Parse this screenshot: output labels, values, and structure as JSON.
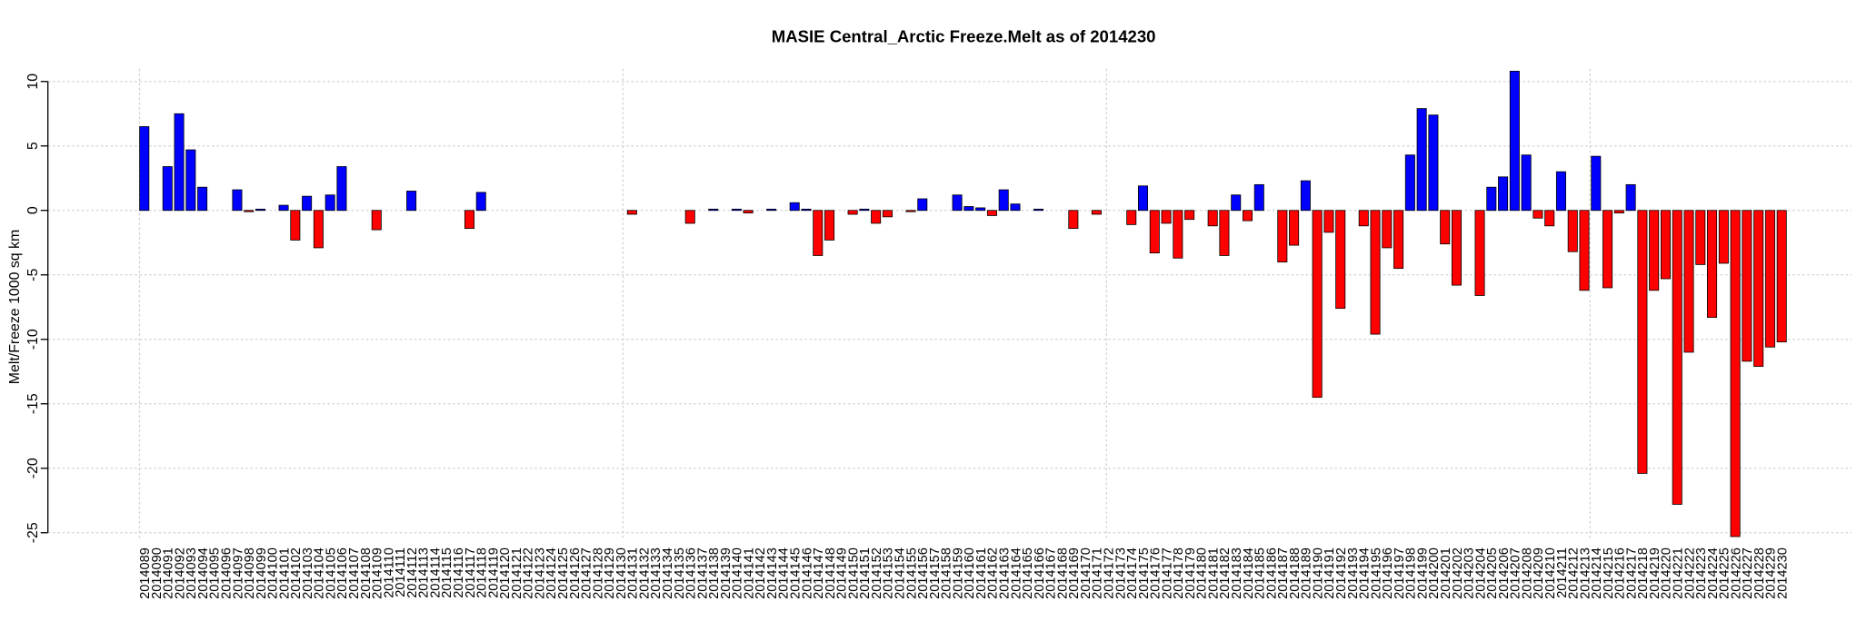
{
  "chart_data": {
    "type": "bar",
    "title": "MASIE Central_Arctic Freeze.Melt as of 2014230",
    "y_label": "Melt/Freeze 1000 sq km",
    "categories": [
      "2014089",
      "2014090",
      "2014091",
      "2014092",
      "2014093",
      "2014094",
      "2014095",
      "2014096",
      "2014097",
      "2014098",
      "2014099",
      "2014100",
      "2014101",
      "2014102",
      "2014103",
      "2014104",
      "2014105",
      "2014106",
      "2014107",
      "2014108",
      "2014109",
      "2014110",
      "2014111",
      "2014112",
      "2014113",
      "2014114",
      "2014115",
      "2014116",
      "2014117",
      "2014118",
      "2014119",
      "2014120",
      "2014121",
      "2014122",
      "2014123",
      "2014124",
      "2014125",
      "2014126",
      "2014127",
      "2014128",
      "2014129",
      "2014130",
      "2014131",
      "2014132",
      "2014133",
      "2014134",
      "2014135",
      "2014136",
      "2014137",
      "2014138",
      "2014139",
      "2014140",
      "2014141",
      "2014142",
      "2014143",
      "2014144",
      "2014145",
      "2014146",
      "2014147",
      "2014148",
      "2014149",
      "2014150",
      "2014151",
      "2014152",
      "2014153",
      "2014154",
      "2014155",
      "2014156",
      "2014157",
      "2014158",
      "2014159",
      "2014160",
      "2014161",
      "2014162",
      "2014163",
      "2014164",
      "2014165",
      "2014166",
      "2014167",
      "2014168",
      "2014169",
      "2014170",
      "2014171",
      "2014172",
      "2014173",
      "2014174",
      "2014175",
      "2014176",
      "2014177",
      "2014178",
      "2014179",
      "2014180",
      "2014181",
      "2014182",
      "2014183",
      "2014184",
      "2014185",
      "2014186",
      "2014187",
      "2014188",
      "2014189",
      "2014190",
      "2014191",
      "2014192",
      "2014193",
      "2014194",
      "2014195",
      "2014196",
      "2014197",
      "2014198",
      "2014199",
      "2014200",
      "2014201",
      "2014202",
      "2014203",
      "2014204",
      "2014205",
      "2014206",
      "2014207",
      "2014208",
      "2014209",
      "2014210",
      "2014211",
      "2014212",
      "2014213",
      "2014214",
      "2014215",
      "2014216",
      "2014217",
      "2014218",
      "2014219",
      "2014220",
      "2014221",
      "2014222",
      "2014223",
      "2014224",
      "2014225",
      "2014226",
      "2014227",
      "2014228",
      "2014229",
      "2014230"
    ],
    "values": [
      6.5,
      0,
      3.4,
      7.5,
      4.7,
      1.8,
      0,
      0,
      1.6,
      -0.1,
      0.1,
      0,
      0.4,
      -2.3,
      1.1,
      -2.9,
      1.2,
      3.4,
      0,
      0,
      -1.5,
      0,
      0,
      1.5,
      0,
      0,
      0,
      0,
      -1.4,
      1.4,
      0,
      0,
      0,
      0,
      0,
      0,
      0,
      0,
      0,
      0,
      0,
      0,
      -0.3,
      0,
      0,
      0,
      0,
      -1.0,
      0,
      0.1,
      0,
      0.1,
      -0.2,
      0,
      0.1,
      0,
      0.6,
      0.1,
      -3.5,
      -2.3,
      0,
      -0.3,
      0.1,
      -1.0,
      -0.5,
      0,
      -0.1,
      0.9,
      0,
      0,
      1.2,
      0.3,
      0.2,
      -0.4,
      1.6,
      0.5,
      0,
      0.1,
      0,
      0,
      -1.4,
      0,
      -0.3,
      0,
      0,
      -1.1,
      1.9,
      -3.3,
      -1.0,
      -3.7,
      -0.7,
      0,
      -1.2,
      -3.5,
      1.2,
      -0.8,
      2.0,
      0,
      -4.0,
      -2.7,
      2.3,
      -14.5,
      -1.7,
      -7.6,
      0,
      -1.2,
      -9.6,
      -2.9,
      -4.5,
      4.3,
      7.9,
      7.4,
      -2.6,
      -5.8,
      0,
      -6.6,
      1.8,
      2.6,
      10.8,
      4.3,
      -0.6,
      -1.2,
      3.0,
      -3.2,
      -6.2,
      4.2,
      -6.0,
      -0.2,
      2.0,
      -20.4,
      -6.2,
      -5.3,
      -22.8,
      -11.0,
      -4.2,
      -8.3,
      -4.1,
      -25.3,
      -11.7,
      -12.1,
      -10.6,
      -10.2
    ],
    "positive_color": "#0000ff",
    "negative_color": "#ff0000",
    "ylim": [
      -25.5,
      11
    ],
    "yticks": [
      -25,
      -20,
      -15,
      -10,
      -5,
      0,
      5,
      10
    ],
    "grid": true
  }
}
